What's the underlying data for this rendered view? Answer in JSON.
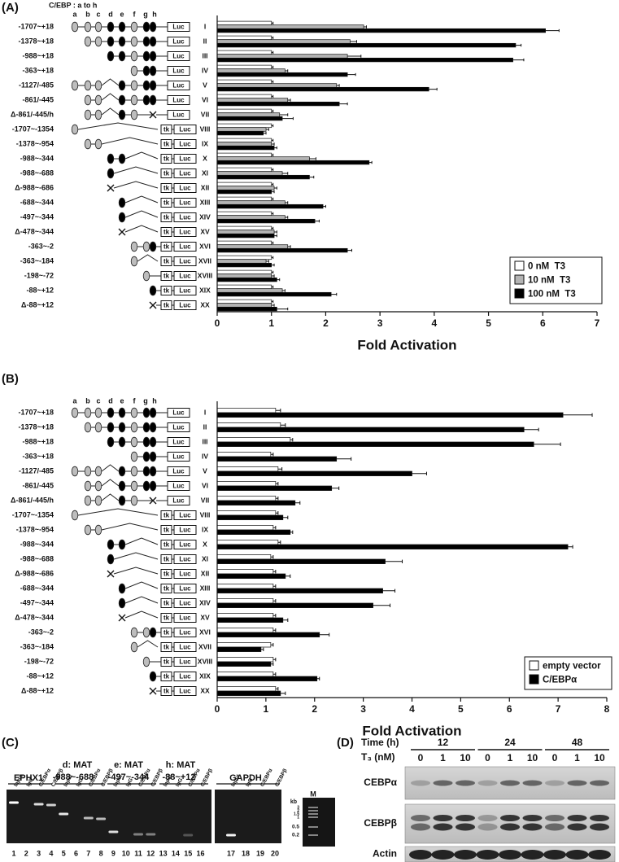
{
  "chart_data": [
    {
      "type": "bar",
      "orientation": "horizontal",
      "panel_label": "(A)",
      "element_header": "C/EBP : a to h",
      "element_letters": [
        "a",
        "b",
        "c",
        "d",
        "e",
        "f",
        "g",
        "h"
      ],
      "box_labels": {
        "tk": "tk",
        "luc": "Luc"
      },
      "categories": [
        "-1707~+18",
        "-1378~+18",
        "-988~+18",
        "-363~+18",
        "-1127/-485",
        "-861/-445",
        "Δ-861/-445/h",
        "-1707~-1354",
        "-1378~-954",
        "-988~-344",
        "-988~-688",
        "Δ-988~-686",
        "-688~-344",
        "-497~-344",
        "Δ-478~-344",
        "-363~-2",
        "-363~-184",
        "-198~-72",
        "-88~+12",
        "Δ-88~+12"
      ],
      "row_numerals": [
        "I",
        "II",
        "III",
        "IV",
        "V",
        "VI",
        "VII",
        "VIII",
        "IX",
        "X",
        "XI",
        "XII",
        "XIII",
        "XIV",
        "XV",
        "XVI",
        "XVII",
        "XVIII",
        "XIX",
        "XX"
      ],
      "series": [
        {
          "name": "0 nM  T3",
          "color": "#ffffff",
          "values": [
            1,
            1,
            1,
            1,
            1,
            1,
            1,
            1,
            1,
            1,
            1,
            1,
            1,
            1,
            1,
            1,
            1,
            1,
            1,
            1
          ],
          "errors": [
            0.03,
            0.03,
            0.03,
            0.03,
            0.03,
            0.03,
            0.03,
            0.03,
            0.03,
            0.03,
            0.03,
            0.03,
            0.03,
            0.03,
            0.03,
            0.03,
            0.03,
            0.03,
            0.03,
            0.03
          ]
        },
        {
          "name": "10 nM  T3",
          "color": "#b4b4b4",
          "values": [
            2.7,
            2.45,
            2.4,
            1.25,
            2.2,
            1.3,
            1.15,
            0.9,
            1,
            1.7,
            1.2,
            1.05,
            1.25,
            1.25,
            1.05,
            1.3,
            0.9,
            1,
            1.2,
            1
          ],
          "errors": [
            0.05,
            0.12,
            0.25,
            0.05,
            0.05,
            0.05,
            0.15,
            0.05,
            0.05,
            0.12,
            0.1,
            0.05,
            0.05,
            0.05,
            0.05,
            0.05,
            0.05,
            0.05,
            0.05,
            0.05
          ]
        },
        {
          "name": "100 nM  T3",
          "color": "#000000",
          "values": [
            6.05,
            5.5,
            5.45,
            2.4,
            3.9,
            2.25,
            1.2,
            0.85,
            1.05,
            2.8,
            1.7,
            1,
            1.95,
            1.8,
            1.05,
            2.4,
            1,
            1.1,
            2.1,
            1.1
          ],
          "errors": [
            0.25,
            0.1,
            0.2,
            0.15,
            0.15,
            0.15,
            0.2,
            0.05,
            0.05,
            0.05,
            0.08,
            0.05,
            0.05,
            0.08,
            0.05,
            0.08,
            0.05,
            0.05,
            0.1,
            0.2
          ]
        }
      ],
      "xlim": [
        0,
        7
      ],
      "xticks": [
        0,
        1,
        2,
        3,
        4,
        5,
        6,
        7
      ],
      "xlabel": "Fold Activation",
      "legend": "lower right"
    },
    {
      "type": "bar",
      "orientation": "horizontal",
      "panel_label": "(B)",
      "element_letters": [
        "a",
        "b",
        "c",
        "d",
        "e",
        "f",
        "g",
        "h"
      ],
      "box_labels": {
        "tk": "tk",
        "luc": "Luc"
      },
      "categories": [
        "-1707~+18",
        "-1378~+18",
        "-988~+18",
        "-363~+18",
        "-1127/-485",
        "-861/-445",
        "Δ-861/-445/h",
        "-1707~-1354",
        "-1378~-954",
        "-988~-344",
        "-988~-688",
        "Δ-988~-686",
        "-688~-344",
        "-497~-344",
        "Δ-478~-344",
        "-363~-2",
        "-363~-184",
        "-198~-72",
        "-88~+12",
        "Δ-88~+12"
      ],
      "row_numerals": [
        "I",
        "II",
        "III",
        "IV",
        "V",
        "VI",
        "VII",
        "VIII",
        "IX",
        "X",
        "XI",
        "XII",
        "XIII",
        "XIV",
        "XV",
        "XVI",
        "XVII",
        "XVIII",
        "XIX",
        "XX"
      ],
      "series": [
        {
          "name": "empty vector",
          "color": "#ffffff",
          "values": [
            1.2,
            1.3,
            1.5,
            1.1,
            1.25,
            1.2,
            1.2,
            1.2,
            1.15,
            1.25,
            1.1,
            1.15,
            1.15,
            1.15,
            1.15,
            1.15,
            1.1,
            1.15,
            1.15,
            1.2
          ],
          "errors": [
            0.1,
            0.1,
            0.05,
            0.05,
            0.08,
            0.05,
            0.05,
            0.05,
            0.05,
            0.05,
            0.05,
            0.05,
            0.05,
            0.05,
            0.05,
            0.05,
            0.05,
            0.05,
            0.05,
            0.05
          ]
        },
        {
          "name": "C/EBPα",
          "color": "#000000",
          "values": [
            7.1,
            6.3,
            6.5,
            2.45,
            4,
            2.35,
            1.6,
            1.35,
            1.5,
            7.2,
            3.45,
            1.4,
            3.4,
            3.2,
            1.35,
            2.1,
            0.9,
            1.1,
            2.05,
            1.3
          ],
          "errors": [
            0.6,
            0.3,
            0.55,
            0.3,
            0.3,
            0.15,
            0.1,
            0.1,
            0.05,
            0.1,
            0.35,
            0.1,
            0.25,
            0.35,
            0.1,
            0.2,
            0.05,
            0.05,
            0.05,
            0.1
          ]
        }
      ],
      "xlim": [
        0,
        8
      ],
      "xticks": [
        0,
        1,
        2,
        3,
        4,
        5,
        6,
        7,
        8
      ],
      "xlabel": "Fold Activation",
      "legend": "lower right"
    }
  ],
  "panel_c": {
    "label": "(C)",
    "groups": [
      [
        "EPHX1"
      ],
      [
        "d: MAT",
        "-988~-688"
      ],
      [
        "e: MAT",
        "-497~-344"
      ],
      [
        "h: MAT",
        "-88~+12"
      ],
      [
        "GAPDH"
      ]
    ],
    "lane_labels": [
      "Input",
      "IgG",
      "C/EBPα",
      "C/EBPβ",
      "Input",
      "IgG",
      "C/EBPα",
      "C/EBPβ",
      "Input",
      "IgG",
      "C/EBPα",
      "C/EBPβ",
      "Input",
      "IgG",
      "C/EBPα",
      "C/EBPβ",
      "Input",
      "IgG",
      "C/EBPα",
      "C/EBPβ"
    ],
    "lane_numbers": [
      "1",
      "2",
      "3",
      "4",
      "5",
      "6",
      "7",
      "8",
      "9",
      "10",
      "11",
      "12",
      "13",
      "14",
      "15",
      "16",
      "17",
      "18",
      "19",
      "20"
    ],
    "marker": {
      "unit": "kb",
      "lane": "M",
      "sizes": [
        "3",
        "2",
        "1.5",
        "1",
        "0.5",
        "0.2"
      ]
    }
  },
  "panel_d": {
    "label": "(D)",
    "time_label": "Time (h)",
    "times": [
      "12",
      "24",
      "48"
    ],
    "dose_label": "T₃ (nM)",
    "doses": [
      "0",
      "1",
      "10",
      "0",
      "1",
      "10",
      "0",
      "1",
      "10"
    ],
    "blots": [
      "CEBPα",
      "CEBPβ",
      "Actin"
    ]
  }
}
